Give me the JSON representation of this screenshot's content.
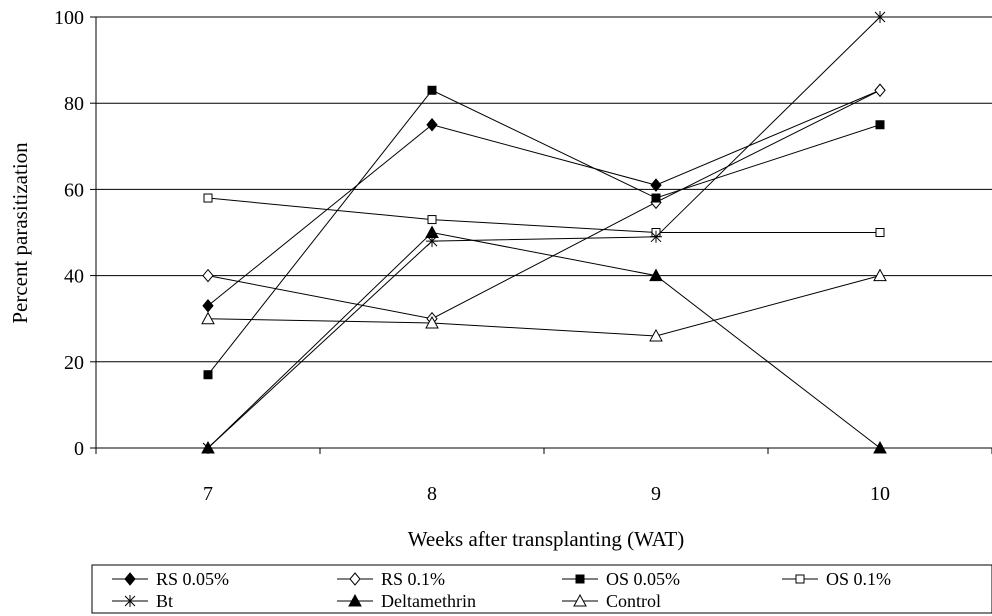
{
  "chart_data": {
    "type": "line",
    "title": "",
    "xlabel": "Weeks after transplanting (WAT)",
    "ylabel": "Percent parasitization",
    "categories": [
      "7",
      "8",
      "9",
      "10"
    ],
    "ylim": [
      0,
      100
    ],
    "yticks": [
      0,
      20,
      40,
      60,
      80,
      100
    ],
    "grid": "horizontal",
    "legend": "bottom",
    "series": [
      {
        "name": "RS 0.05%",
        "marker": "filled-diamond",
        "values": [
          33,
          75,
          61,
          83
        ]
      },
      {
        "name": "RS 0.1%",
        "marker": "open-diamond",
        "values": [
          40,
          30,
          57,
          83
        ]
      },
      {
        "name": "OS 0.05%",
        "marker": "filled-square",
        "values": [
          17,
          83,
          58,
          75
        ]
      },
      {
        "name": "OS 0.1%",
        "marker": "open-square",
        "values": [
          58,
          53,
          50,
          50
        ]
      },
      {
        "name": "Bt",
        "marker": "asterisk",
        "values": [
          0,
          48,
          49,
          100
        ]
      },
      {
        "name": "Deltamethrin",
        "marker": "filled-triangle",
        "values": [
          0,
          50,
          40,
          0
        ]
      },
      {
        "name": "Control",
        "marker": "open-triangle",
        "values": [
          30,
          29,
          26,
          40
        ]
      }
    ]
  }
}
